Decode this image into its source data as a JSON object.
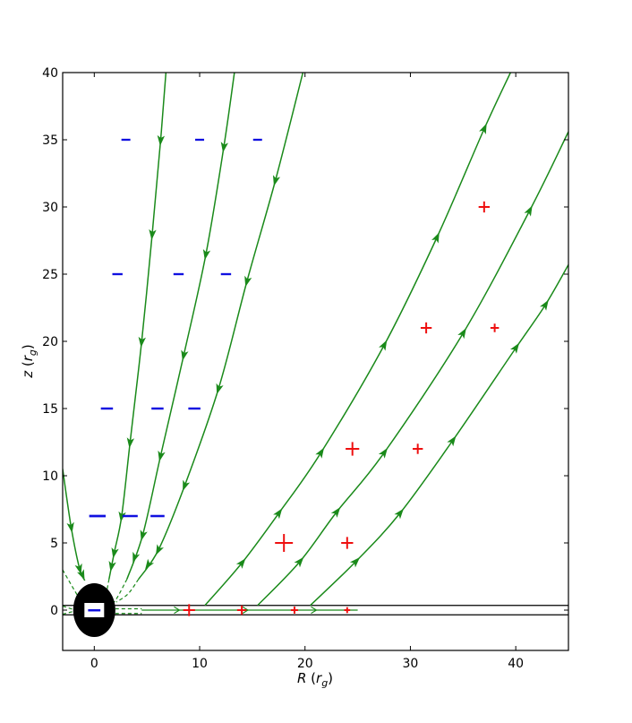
{
  "chart_data": {
    "type": "line",
    "title": "",
    "xlabel": {
      "var": "R",
      "unit": "r",
      "sub": "g"
    },
    "ylabel": {
      "var": "z",
      "unit": "r",
      "sub": "g"
    },
    "xlim": [
      -3,
      45
    ],
    "ylim": [
      -3,
      40
    ],
    "xticks": [
      0,
      10,
      20,
      30,
      40
    ],
    "yticks": [
      0,
      5,
      10,
      15,
      20,
      25,
      30,
      35,
      40
    ],
    "grid": false,
    "colors": {
      "field_line": "#1a8a1a",
      "negative_charge": "#1010e0",
      "positive_charge": "#ee1010",
      "black_hole": "#000000",
      "disk": "#000000",
      "frame": "#000000"
    },
    "black_hole": {
      "center": [
        0,
        0
      ],
      "radius_x": 2,
      "radius_y": 2,
      "symbol": "−"
    },
    "disk_surfaces": [
      0.35,
      -0.35
    ],
    "field_lines": [
      {
        "name": "inflow-1",
        "direction": "down",
        "points": [
          [
            -3,
            10.5
          ],
          [
            -2.2,
            6.2
          ],
          [
            -1.4,
            3.1
          ],
          [
            -0.9,
            2.2
          ]
        ]
      },
      {
        "name": "inflow-2",
        "direction": "down",
        "points": [
          [
            6.8,
            40
          ],
          [
            6.3,
            35
          ],
          [
            5.5,
            28
          ],
          [
            4.5,
            20
          ],
          [
            3.4,
            12.5
          ],
          [
            2.6,
            7
          ],
          [
            1.9,
            4.3
          ],
          [
            1.4,
            2.3
          ]
        ]
      },
      {
        "name": "inflow-3",
        "direction": "down",
        "points": [
          [
            13.3,
            40
          ],
          [
            12.3,
            34.5
          ],
          [
            10.6,
            26.5
          ],
          [
            8.5,
            19
          ],
          [
            6.3,
            11.5
          ],
          [
            4.6,
            5.6
          ],
          [
            3.1,
            2.3
          ]
        ]
      },
      {
        "name": "inflow-4",
        "direction": "down",
        "points": [
          [
            19.8,
            40
          ],
          [
            17.2,
            32
          ],
          [
            14.5,
            24.5
          ],
          [
            11.8,
            16.5
          ],
          [
            8.6,
            9.3
          ],
          [
            6.1,
            4.5
          ],
          [
            4.2,
            2.3
          ]
        ]
      },
      {
        "name": "outflow-1",
        "direction": "up",
        "points": [
          [
            10.5,
            0.35
          ],
          [
            14,
            3.5
          ],
          [
            17.5,
            7.2
          ],
          [
            21.5,
            11.7
          ],
          [
            27.5,
            19.7
          ],
          [
            32.5,
            27.7
          ],
          [
            37,
            35.8
          ],
          [
            39.5,
            40
          ]
        ]
      },
      {
        "name": "outflow-2",
        "direction": "up",
        "points": [
          [
            15.5,
            0.35
          ],
          [
            19.5,
            3.6
          ],
          [
            23,
            7.3
          ],
          [
            27.5,
            11.7
          ],
          [
            35,
            20.6
          ],
          [
            41.3,
            29.7
          ],
          [
            45,
            35.6
          ]
        ]
      },
      {
        "name": "outflow-3",
        "direction": "up",
        "points": [
          [
            20.5,
            0.35
          ],
          [
            24.8,
            3.6
          ],
          [
            29,
            7.2
          ],
          [
            34,
            12.6
          ],
          [
            40,
            19.5
          ],
          [
            42.8,
            22.7
          ],
          [
            45,
            25.7
          ]
        ]
      }
    ],
    "dashed_lines": [
      {
        "name": "dash-1",
        "points": [
          [
            -3,
            3
          ],
          [
            -2.2,
            1.9
          ],
          [
            -1.6,
            1.1
          ]
        ]
      },
      {
        "name": "dash-2",
        "points": [
          [
            -3,
            0.3
          ],
          [
            -2,
            0.05
          ]
        ]
      },
      {
        "name": "dash-3",
        "points": [
          [
            -3,
            -0.3
          ],
          [
            -2,
            -0.1
          ]
        ]
      },
      {
        "name": "dash-4",
        "points": [
          [
            1.4,
            2.3
          ],
          [
            1.2,
            1.2
          ],
          [
            1.6,
            0.6
          ]
        ]
      },
      {
        "name": "dash-5",
        "points": [
          [
            3.1,
            2.3
          ],
          [
            2.3,
            1.1
          ],
          [
            1.9,
            0.6
          ]
        ]
      },
      {
        "name": "dash-6",
        "points": [
          [
            4.2,
            2.3
          ],
          [
            3.2,
            1.2
          ],
          [
            2.1,
            0.6
          ]
        ]
      },
      {
        "name": "dash-7",
        "points": [
          [
            2,
            0.1
          ],
          [
            4.5,
            0.1
          ]
        ]
      },
      {
        "name": "dash-8",
        "points": [
          [
            2,
            -0.25
          ],
          [
            4.5,
            -0.25
          ]
        ]
      }
    ],
    "midplane_flow": {
      "solid": {
        "from": [
          4.5,
          0
        ],
        "to": [
          25,
          0
        ]
      },
      "arrows": [
        8,
        14.5,
        21
      ]
    },
    "negative_charges": [
      {
        "x": 3,
        "y": 35,
        "size": 1
      },
      {
        "x": 10,
        "y": 35,
        "size": 1
      },
      {
        "x": 15.5,
        "y": 35,
        "size": 1
      },
      {
        "x": 2.2,
        "y": 25,
        "size": 1.2
      },
      {
        "x": 8,
        "y": 25,
        "size": 1.2
      },
      {
        "x": 12.5,
        "y": 25,
        "size": 1.2
      },
      {
        "x": 1.2,
        "y": 15,
        "size": 1.5
      },
      {
        "x": 6,
        "y": 15,
        "size": 1.5
      },
      {
        "x": 9.5,
        "y": 15,
        "size": 1.5
      },
      {
        "x": 0.3,
        "y": 7,
        "size": 2.2
      },
      {
        "x": 3.4,
        "y": 7,
        "size": 2
      },
      {
        "x": 6,
        "y": 7,
        "size": 1.8
      }
    ],
    "positive_charges": [
      {
        "x": 37,
        "y": 30,
        "size": 0.65
      },
      {
        "x": 31.5,
        "y": 21,
        "size": 0.65
      },
      {
        "x": 38,
        "y": 21,
        "size": 0.5
      },
      {
        "x": 24.5,
        "y": 12,
        "size": 0.8
      },
      {
        "x": 30.7,
        "y": 12,
        "size": 0.6
      },
      {
        "x": 18,
        "y": 5,
        "size": 1.05
      },
      {
        "x": 24,
        "y": 5,
        "size": 0.7
      },
      {
        "x": 9,
        "y": 0,
        "size": 0.7
      },
      {
        "x": 14,
        "y": 0,
        "size": 0.55
      },
      {
        "x": 19,
        "y": 0,
        "size": 0.42
      },
      {
        "x": 24,
        "y": 0,
        "size": 0.35
      }
    ]
  }
}
